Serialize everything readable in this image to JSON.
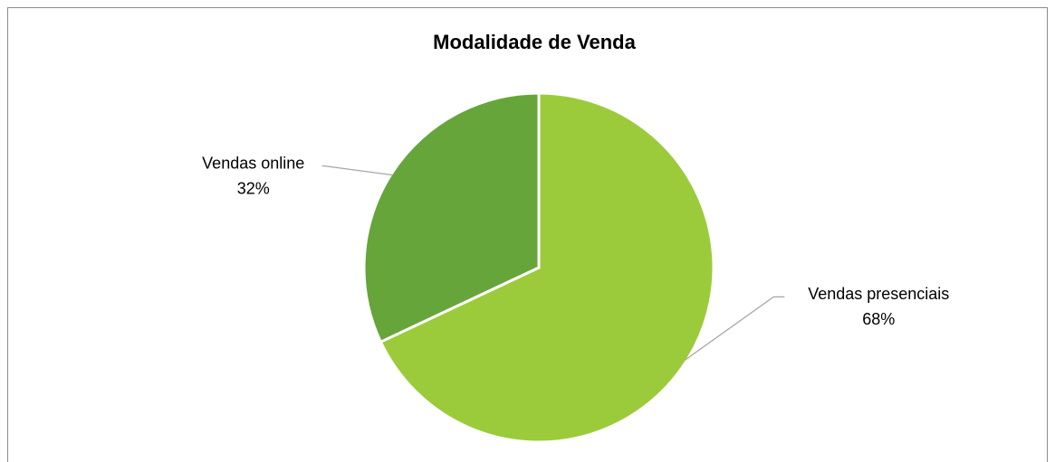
{
  "chart_data": {
    "type": "pie",
    "title": "Modalidade de Venda",
    "categories": [
      "Vendas presenciais",
      "Vendas online"
    ],
    "values": [
      68,
      32
    ],
    "value_labels": [
      "68%",
      "32%"
    ],
    "colors": [
      "#9bcb3b",
      "#66a53a"
    ]
  }
}
